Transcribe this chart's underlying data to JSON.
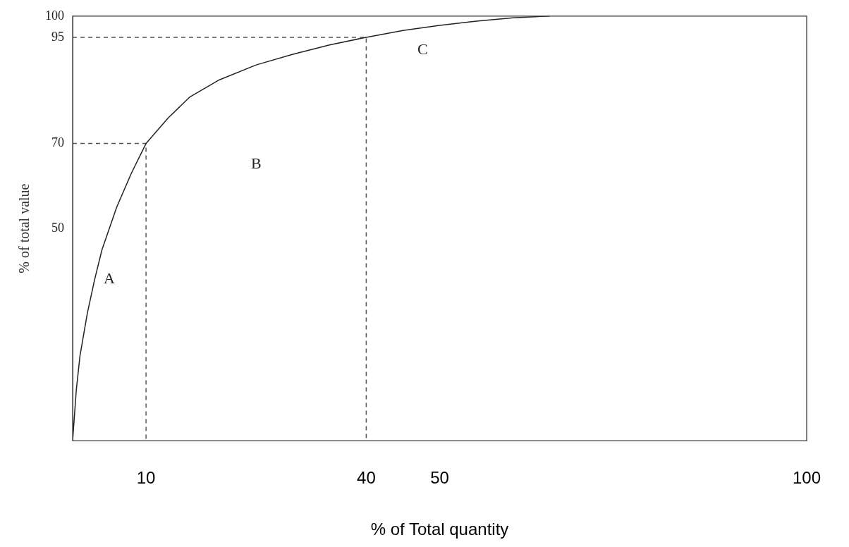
{
  "chart_data": {
    "type": "line",
    "xlabel": "% of Total quantity",
    "ylabel": "% of total value",
    "xlim": [
      0,
      100
    ],
    "ylim": [
      0,
      100
    ],
    "xticks": [
      10,
      40,
      50,
      100
    ],
    "yticks": [
      50,
      70,
      95,
      100
    ],
    "grid": false,
    "legend": false,
    "marker": "none",
    "series": [
      {
        "color": "#222222",
        "line_style": "solid",
        "x": [
          0,
          0.5,
          1,
          2,
          3,
          4,
          6,
          8,
          10,
          13,
          16,
          20,
          25,
          30,
          35,
          40,
          45,
          50,
          55,
          60,
          65
        ],
        "values": [
          0,
          12,
          20,
          30,
          38,
          45,
          55,
          63,
          70,
          76,
          81,
          85,
          88.5,
          91,
          93.2,
          95,
          96.6,
          97.8,
          98.8,
          99.6,
          100
        ]
      },
      {
        "color": "#555555",
        "line_style": "dashed",
        "x": [
          0,
          10,
          10
        ],
        "values": [
          70,
          70,
          0
        ]
      },
      {
        "color": "#555555",
        "line_style": "dashed",
        "x": [
          0,
          40,
          40
        ],
        "values": [
          95,
          95,
          0
        ]
      }
    ],
    "annotations": [
      "A",
      "B",
      "C"
    ]
  }
}
